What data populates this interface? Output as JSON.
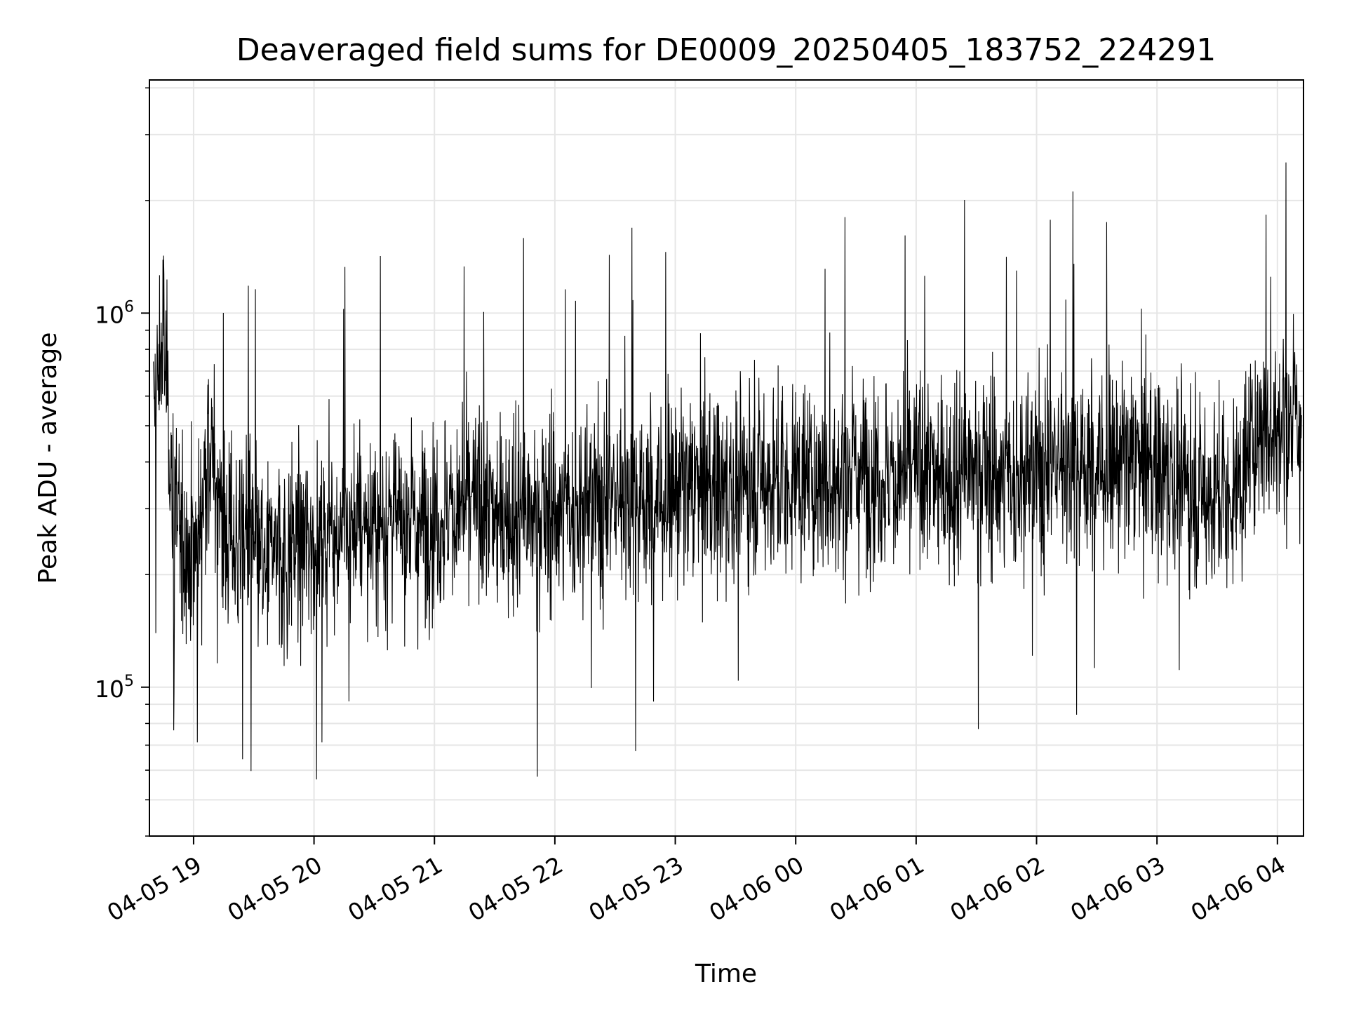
{
  "chart_data": {
    "type": "line",
    "title": "Deaveraged field sums for DE0009_20250405_183752_224291",
    "xlabel": "Time",
    "ylabel": "Peak ADU - average",
    "yscale": "log",
    "xlim": [
      "2025-04-05 18:38",
      "2025-04-06 04:13"
    ],
    "ylim": [
      40000,
      4200000
    ],
    "grid": true,
    "line_color": "#000000",
    "grid_color": "#e6e6e6",
    "x_ticks": [
      "2025-04-05 19:00",
      "2025-04-05 20:00",
      "2025-04-05 21:00",
      "2025-04-05 22:00",
      "2025-04-05 23:00",
      "2025-04-06 00:00",
      "2025-04-06 01:00",
      "2025-04-06 02:00",
      "2025-04-06 03:00",
      "2025-04-06 04:00"
    ],
    "x_tick_labels": [
      "04-05 19",
      "04-05 20",
      "04-05 21",
      "04-05 22",
      "04-05 23",
      "04-06 00",
      "04-06 01",
      "04-06 02",
      "04-06 03",
      "04-06 04"
    ],
    "y_ticks": [
      100000,
      1000000
    ],
    "y_tick_labels": [
      {
        "base": "10",
        "exp": "5"
      },
      {
        "base": "10",
        "exp": "6"
      }
    ],
    "series": [
      {
        "x": [
          "2025-04-05 18:40",
          "2025-04-05 18:45",
          "2025-04-05 18:50",
          "2025-04-05 18:55",
          "2025-04-05 19:00",
          "2025-04-05 19:05",
          "2025-04-05 19:10",
          "2025-04-05 19:15",
          "2025-04-05 19:20",
          "2025-04-05 19:25",
          "2025-04-05 19:30",
          "2025-04-05 19:35",
          "2025-04-05 19:40",
          "2025-04-05 19:45",
          "2025-04-05 19:50",
          "2025-04-05 19:55",
          "2025-04-05 20:00",
          "2025-04-05 20:10",
          "2025-04-05 20:20",
          "2025-04-05 20:30",
          "2025-04-05 20:40",
          "2025-04-05 20:50",
          "2025-04-05 21:00",
          "2025-04-05 21:10",
          "2025-04-05 21:20",
          "2025-04-05 21:30",
          "2025-04-05 21:40",
          "2025-04-05 21:50",
          "2025-04-05 22:00",
          "2025-04-05 22:10",
          "2025-04-05 22:20",
          "2025-04-05 22:30",
          "2025-04-05 22:40",
          "2025-04-05 22:50",
          "2025-04-05 23:00",
          "2025-04-05 23:10",
          "2025-04-05 23:20",
          "2025-04-05 23:30",
          "2025-04-05 23:40",
          "2025-04-05 23:50",
          "2025-04-06 00:00",
          "2025-04-06 00:10",
          "2025-04-06 00:20",
          "2025-04-06 00:30",
          "2025-04-06 00:40",
          "2025-04-06 00:50",
          "2025-04-06 01:00",
          "2025-04-06 01:10",
          "2025-04-06 01:20",
          "2025-04-06 01:30",
          "2025-04-06 01:40",
          "2025-04-06 01:50",
          "2025-04-06 02:00",
          "2025-04-06 02:10",
          "2025-04-06 02:20",
          "2025-04-06 02:30",
          "2025-04-06 02:40",
          "2025-04-06 02:50",
          "2025-04-06 03:00",
          "2025-04-06 03:10",
          "2025-04-06 03:20",
          "2025-04-06 03:30",
          "2025-04-06 03:40",
          "2025-04-06 03:50",
          "2025-04-06 04:00",
          "2025-04-06 04:10"
        ],
        "y": [
          500000,
          900000,
          300000,
          250000,
          220000,
          330000,
          400000,
          260000,
          240000,
          280000,
          230000,
          200000,
          250000,
          210000,
          250000,
          240000,
          250000,
          260000,
          270000,
          260000,
          290000,
          270000,
          280000,
          300000,
          310000,
          290000,
          300000,
          280000,
          300000,
          290000,
          310000,
          320000,
          320000,
          310000,
          330000,
          340000,
          340000,
          330000,
          360000,
          350000,
          360000,
          350000,
          350000,
          380000,
          370000,
          360000,
          380000,
          370000,
          360000,
          380000,
          370000,
          350000,
          380000,
          400000,
          400000,
          380000,
          390000,
          400000,
          380000,
          360000,
          330000,
          320000,
          330000,
          480000,
          500000,
          520000
        ]
      }
    ]
  }
}
